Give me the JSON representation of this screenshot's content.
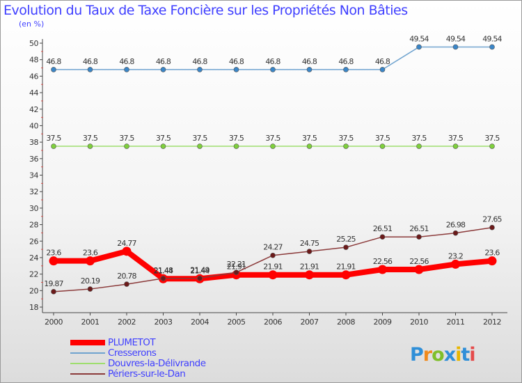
{
  "title": "Evolution du Taux de Taxe Foncière sur les Propriétés Non Bâties",
  "unit": "(en %)",
  "logo_text": "Proxiti",
  "chart_data": {
    "type": "line",
    "x": [
      2000,
      2001,
      2002,
      2003,
      2004,
      2005,
      2006,
      2007,
      2008,
      2009,
      2010,
      2011,
      2012
    ],
    "ylim": [
      18,
      50
    ],
    "yticks": [
      18,
      20,
      22,
      24,
      26,
      28,
      30,
      32,
      34,
      36,
      38,
      40,
      42,
      44,
      46,
      48,
      50
    ],
    "grid": false,
    "legend_position": "bottom-left",
    "series": [
      {
        "name": "Cresserons",
        "color": "#6fa3cf",
        "marker": "#3a86c8",
        "width": 1.5,
        "values": [
          46.8,
          46.8,
          46.8,
          46.8,
          46.8,
          46.8,
          46.8,
          46.8,
          46.8,
          46.8,
          49.54,
          49.54,
          49.54
        ],
        "labels": [
          "46.8",
          "46.8",
          "46.8",
          "46.8",
          "46.8",
          "46.8",
          "46.8",
          "46.8",
          "46.8",
          "46.8",
          "49.54",
          "49.54",
          "49.54"
        ]
      },
      {
        "name": "Douvres-la-Délivrande",
        "color": "#9ede6e",
        "marker": "#7ecf3c",
        "width": 1.5,
        "values": [
          37.5,
          37.5,
          37.5,
          37.5,
          37.5,
          37.5,
          37.5,
          37.5,
          37.5,
          37.5,
          37.5,
          37.5,
          37.5
        ],
        "labels": [
          "37.5",
          "37.5",
          "37.5",
          "37.5",
          "37.5",
          "37.5",
          "37.5",
          "37.5",
          "37.5",
          "37.5",
          "37.5",
          "37.5",
          "37.5"
        ]
      },
      {
        "name": "Périers-sur-le-Dan",
        "color": "#8b3a3a",
        "marker": "#6b1a1a",
        "width": 1.5,
        "values": [
          19.87,
          20.19,
          20.78,
          21.48,
          21.49,
          22.21,
          24.27,
          24.75,
          25.25,
          26.51,
          26.51,
          26.98,
          27.65
        ],
        "labels": [
          "19.87",
          "20.19",
          "20.78",
          "21.48",
          "21.49",
          "22.21",
          "24.27",
          "24.75",
          "25.25",
          "26.51",
          "26.51",
          "26.98",
          "27.65"
        ]
      },
      {
        "name": "PLUMETOT",
        "color": "#ff0000",
        "marker": "#ff0000",
        "width": 8,
        "values": [
          23.6,
          23.6,
          24.77,
          21.44,
          21.44,
          21.91,
          21.91,
          21.91,
          21.91,
          22.56,
          22.56,
          23.2,
          23.6
        ],
        "labels": [
          "23.6",
          "23.6",
          "24.77",
          "21.44",
          "21.44",
          "21.91",
          "21.91",
          "21.91",
          "21.91",
          "22.56",
          "22.56",
          "23.2",
          "23.6"
        ]
      }
    ]
  },
  "legend": {
    "items": [
      {
        "label": "PLUMETOT",
        "color": "#ff0000"
      },
      {
        "label": "Cresserons",
        "color": "#6fa3cf"
      },
      {
        "label": "Douvres-la-Délivrande",
        "color": "#9ede6e"
      },
      {
        "label": "Périers-sur-le-Dan",
        "color": "#8b3a3a"
      }
    ]
  }
}
